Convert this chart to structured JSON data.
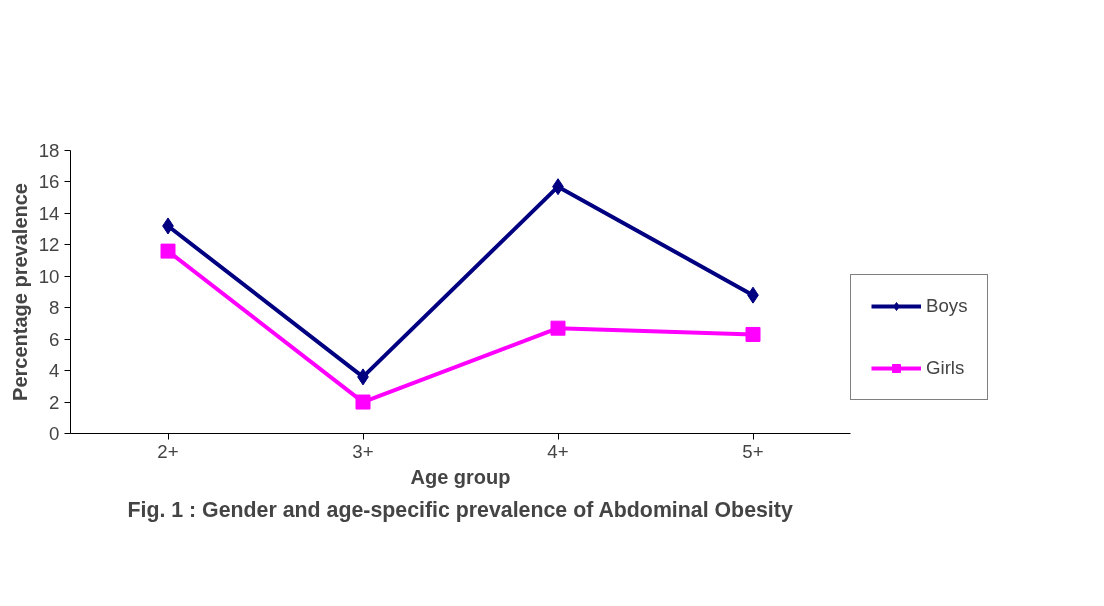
{
  "chart_data": {
    "type": "line",
    "title": "Fig. 1 : Gender and age-specific prevalence of Abdominal Obesity",
    "xlabel": "Age group",
    "ylabel": "Percentage prevalence",
    "categories": [
      "2+",
      "3+",
      "4+",
      "5+"
    ],
    "series": [
      {
        "name": "Boys",
        "color": "#000080",
        "marker": "diamond",
        "values": [
          13.2,
          3.6,
          15.7,
          8.8
        ]
      },
      {
        "name": "Girls",
        "color": "#ff00ff",
        "marker": "square",
        "values": [
          11.6,
          2.0,
          6.7,
          6.3
        ]
      }
    ],
    "ylim": [
      0,
      18
    ],
    "yticks": [
      0,
      2,
      4,
      6,
      8,
      10,
      12,
      14,
      16,
      18
    ],
    "grid": false,
    "legend": "right",
    "line_style": "solid"
  }
}
